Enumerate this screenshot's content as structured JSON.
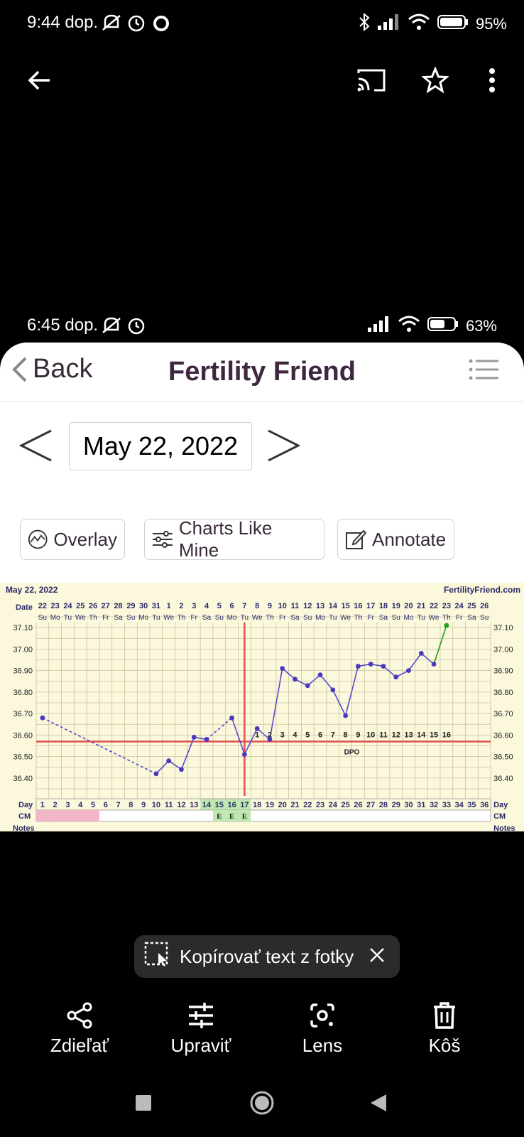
{
  "status": {
    "time": "9:44 dop.",
    "battery": "95%"
  },
  "inner_status": {
    "time": "6:45 dop.",
    "battery": "63%"
  },
  "app": {
    "back_label": "Back",
    "title": "Fertility Friend"
  },
  "date_nav": {
    "date": "May 22, 2022",
    "prev": "<",
    "next": ">"
  },
  "chips": {
    "overlay": "Overlay",
    "charts_like_mine": "Charts Like Mine",
    "annotate": "Annotate"
  },
  "chart_data": {
    "type": "line",
    "date_label": "May 22, 2022",
    "site": "FertilityFriend.com",
    "date_row_label": "Date",
    "dates": [
      "22",
      "23",
      "24",
      "25",
      "26",
      "27",
      "28",
      "29",
      "30",
      "31",
      "1",
      "2",
      "3",
      "4",
      "5",
      "6",
      "7",
      "8",
      "9",
      "10",
      "11",
      "12",
      "13",
      "14",
      "15",
      "16",
      "17",
      "18",
      "19",
      "20",
      "21",
      "22",
      "23",
      "24",
      "25",
      "26"
    ],
    "weekdays": [
      "Su",
      "Mo",
      "Tu",
      "We",
      "Th",
      "Fr",
      "Sa",
      "Su",
      "Mo",
      "Tu",
      "We",
      "Th",
      "Fr",
      "Sa",
      "Su",
      "Mo",
      "Tu",
      "We",
      "Th",
      "Fr",
      "Sa",
      "Su",
      "Mo",
      "Tu",
      "We",
      "Th",
      "Fr",
      "Sa",
      "Su",
      "Mo",
      "Tu",
      "We",
      "Th",
      "Fr",
      "Sa",
      "Su"
    ],
    "y_ticks": [
      "37.10",
      "37.00",
      "36.90",
      "36.80",
      "36.70",
      "36.60",
      "36.50",
      "36.40"
    ],
    "ylim": [
      36.35,
      37.15
    ],
    "temps": [
      {
        "day": 1,
        "t": 36.68
      },
      {
        "day": 10,
        "t": 36.42
      },
      {
        "day": 11,
        "t": 36.48
      },
      {
        "day": 12,
        "t": 36.44
      },
      {
        "day": 13,
        "t": 36.59
      },
      {
        "day": 14,
        "t": 36.58
      },
      {
        "day": 16,
        "t": 36.68
      },
      {
        "day": 17,
        "t": 36.51
      },
      {
        "day": 18,
        "t": 36.63
      },
      {
        "day": 19,
        "t": 36.58
      },
      {
        "day": 20,
        "t": 36.91
      },
      {
        "day": 21,
        "t": 36.86
      },
      {
        "day": 22,
        "t": 36.83
      },
      {
        "day": 23,
        "t": 36.88
      },
      {
        "day": 24,
        "t": 36.81
      },
      {
        "day": 25,
        "t": 36.69
      },
      {
        "day": 26,
        "t": 36.92
      },
      {
        "day": 27,
        "t": 36.93
      },
      {
        "day": 28,
        "t": 36.92
      },
      {
        "day": 29,
        "t": 36.87
      },
      {
        "day": 30,
        "t": 36.9
      },
      {
        "day": 31,
        "t": 36.98
      },
      {
        "day": 32,
        "t": 36.93
      },
      {
        "day": 33,
        "t": 37.11
      }
    ],
    "coverline": 36.57,
    "ovulation_day": 17,
    "dpo_labels": [
      "1",
      "2",
      "3",
      "4",
      "5",
      "6",
      "7",
      "8",
      "9",
      "10",
      "11",
      "12",
      "13",
      "14",
      "15",
      "16"
    ],
    "dpo_text": "DPO",
    "day_row_label": "Day",
    "cm_row_label": "CM",
    "notes_label": "Notes",
    "cm_pink_days": [
      1,
      2,
      3,
      4,
      5
    ],
    "cm_e_days": [
      15,
      16,
      17
    ],
    "cm_e_text": "E",
    "green_days": [
      14,
      15,
      16,
      17
    ]
  },
  "toast": {
    "label": "Kopírovať text z fotky"
  },
  "actions": {
    "share": "Zdieľať",
    "edit": "Upraviť",
    "lens": "Lens",
    "trash": "Kôš"
  }
}
